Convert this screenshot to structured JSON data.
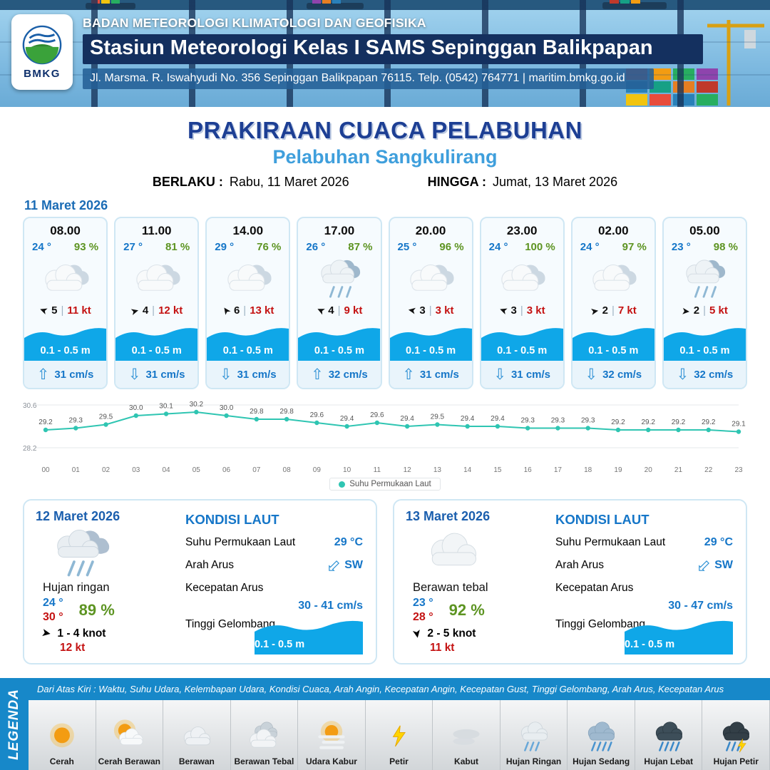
{
  "colors": {
    "navy": "#14305f",
    "title_blue": "#1d3f94",
    "subtitle_blue": "#3f9fdc",
    "temp_blue": "#1576c8",
    "rh_green": "#5d9422",
    "alert_red": "#c41212",
    "wave_blue": "#0fa7e8",
    "chart_teal": "#2fc5b2",
    "footer_blue": "#1788c9"
  },
  "header": {
    "logo_text": "BMKG",
    "agency": "BADAN METEOROLOGI KLIMATOLOGI DAN GEOFISIKA",
    "station": "Stasiun Meteorologi Kelas I SAMS Sepinggan Balikpapan",
    "address": "Jl. Marsma. R. Iswahyudi No. 356 Sepinggan Balikpapan 76115. Telp. (0542) 764771 | maritim.bmkg.go.id"
  },
  "title": {
    "main": "PRAKIRAAN CUACA PELABUHAN",
    "port": "Pelabuhan Sangkulirang",
    "berlaku_label": "BERLAKU :",
    "berlaku_value": "Rabu, 11 Maret 2026",
    "hingga_label": "HINGGA :",
    "hingga_value": "Jumat, 13 Maret 2026"
  },
  "forecast_date": "11 Maret 2026",
  "forecast_cards": [
    {
      "time": "08.00",
      "temp": "24 °",
      "rh": "93 %",
      "icon": "berawan",
      "wind_deg": 200,
      "wind_val": "5",
      "wind_gust": "11 kt",
      "wave": "0.1 - 0.5 m",
      "current_dir": "up",
      "current": "31 cm/s"
    },
    {
      "time": "11.00",
      "temp": "27 °",
      "rh": "81 %",
      "icon": "berawan",
      "wind_deg": 345,
      "wind_val": "4",
      "wind_gust": "12 kt",
      "wave": "0.1 - 0.5 m",
      "current_dir": "down",
      "current": "31 cm/s"
    },
    {
      "time": "14.00",
      "temp": "29 °",
      "rh": "76 %",
      "icon": "berawan",
      "wind_deg": 235,
      "wind_val": "6",
      "wind_gust": "13 kt",
      "wave": "0.1 - 0.5 m",
      "current_dir": "down",
      "current": "31 cm/s"
    },
    {
      "time": "17.00",
      "temp": "26 °",
      "rh": "87 %",
      "icon": "hujan",
      "wind_deg": 205,
      "wind_val": "4",
      "wind_gust": "9 kt",
      "wave": "0.1 - 0.5 m",
      "current_dir": "up",
      "current": "32 cm/s"
    },
    {
      "time": "20.00",
      "temp": "25 °",
      "rh": "96 %",
      "icon": "berawan",
      "wind_deg": 190,
      "wind_val": "3",
      "wind_gust": "3 kt",
      "wave": "0.1 - 0.5 m",
      "current_dir": "up",
      "current": "31 cm/s"
    },
    {
      "time": "23.00",
      "temp": "24 °",
      "rh": "100 %",
      "icon": "berawan",
      "wind_deg": 200,
      "wind_val": "3",
      "wind_gust": "3 kt",
      "wave": "0.1 - 0.5 m",
      "current_dir": "down",
      "current": "31 cm/s"
    },
    {
      "time": "02.00",
      "temp": "24 °",
      "rh": "97 %",
      "icon": "berawan",
      "wind_deg": 350,
      "wind_val": "2",
      "wind_gust": "7 kt",
      "wave": "0.1 - 0.5 m",
      "current_dir": "down",
      "current": "32 cm/s"
    },
    {
      "time": "05.00",
      "temp": "23 °",
      "rh": "98 %",
      "icon": "hujan",
      "wind_deg": 5,
      "wind_val": "2",
      "wind_gust": "5 kt",
      "wave": "0.1 - 0.5 m",
      "current_dir": "down",
      "current": "32 cm/s"
    }
  ],
  "chart_data": {
    "type": "line",
    "series_name": "Suhu Permukaan Laut",
    "x": [
      "00",
      "01",
      "02",
      "03",
      "04",
      "05",
      "06",
      "07",
      "08",
      "09",
      "10",
      "11",
      "12",
      "13",
      "14",
      "15",
      "16",
      "17",
      "18",
      "19",
      "20",
      "21",
      "22",
      "23"
    ],
    "values": [
      29.2,
      29.3,
      29.5,
      30.0,
      30.1,
      30.2,
      30.0,
      29.8,
      29.8,
      29.6,
      29.4,
      29.6,
      29.4,
      29.5,
      29.4,
      29.4,
      29.3,
      29.3,
      29.3,
      29.2,
      29.2,
      29.2,
      29.2,
      29.1
    ],
    "ylim": [
      28.2,
      30.6
    ],
    "xlabel": "",
    "ylabel": "",
    "legend": "Suhu Permukaan Laut",
    "color": "#2fc5b2",
    "grid": false,
    "legend_position": "bottom"
  },
  "day_cards": [
    {
      "date": "12 Maret 2026",
      "icon": "hujan-ringan",
      "condition": "Hujan ringan",
      "temp_min": "24 °",
      "temp_max": "30 °",
      "rh": "89 %",
      "wind_knot": "1 - 4 knot",
      "wind_deg": 10,
      "gust": "12 kt",
      "sea": {
        "title": "KONDISI LAUT",
        "sst_label": "Suhu Permukaan Laut",
        "sst_value": "29 °C",
        "dir_label": "Arah Arus",
        "dir_value": "SW",
        "dir_deg": 225,
        "speed_label": "Kecepatan Arus",
        "speed_value": "30 - 41 cm/s",
        "wave_label": "Tinggi Gelombang",
        "wave_value": "0.1 - 0.5 m"
      }
    },
    {
      "date": "13 Maret 2026",
      "icon": "berawan-tebal",
      "condition": "Berawan tebal",
      "temp_min": "23 °",
      "temp_max": "28 °",
      "rh": "92 %",
      "wind_knot": "2 - 5 knot",
      "wind_deg": 80,
      "gust": "11 kt",
      "sea": {
        "title": "KONDISI LAUT",
        "sst_label": "Suhu Permukaan Laut",
        "sst_value": "29 °C",
        "dir_label": "Arah Arus",
        "dir_value": "SW",
        "dir_deg": 225,
        "speed_label": "Kecepatan Arus",
        "speed_value": "30 - 47 cm/s",
        "wave_label": "Tinggi Gelombang",
        "wave_value": "0.1 - 0.5 m"
      }
    }
  ],
  "legend": {
    "strip_text": "Dari Atas Kiri : Waktu, Suhu Udara, Kelembapan Udara, Kondisi Cuaca, Arah Angin, Kecepatan Angin, Kecepatan Gust, Tinggi Gelombang, Arah Arus, Kecepatan Arus",
    "vertical_label": "LEGENDA",
    "items": [
      {
        "label": "Cerah",
        "icon": "sun"
      },
      {
        "label": "Cerah Berawan",
        "icon": "sun-cloud"
      },
      {
        "label": "Berawan",
        "icon": "cloud"
      },
      {
        "label": "Berawan Tebal",
        "icon": "cloud-thick"
      },
      {
        "label": "Udara Kabur",
        "icon": "haze"
      },
      {
        "label": "Petir",
        "icon": "bolt"
      },
      {
        "label": "Kabut",
        "icon": "fog"
      },
      {
        "label": "Hujan Ringan",
        "icon": "rain-light"
      },
      {
        "label": "Hujan Sedang",
        "icon": "rain-medium"
      },
      {
        "label": "Hujan Lebat",
        "icon": "rain-heavy"
      },
      {
        "label": "Hujan Petir",
        "icon": "rain-thunder"
      }
    ]
  }
}
